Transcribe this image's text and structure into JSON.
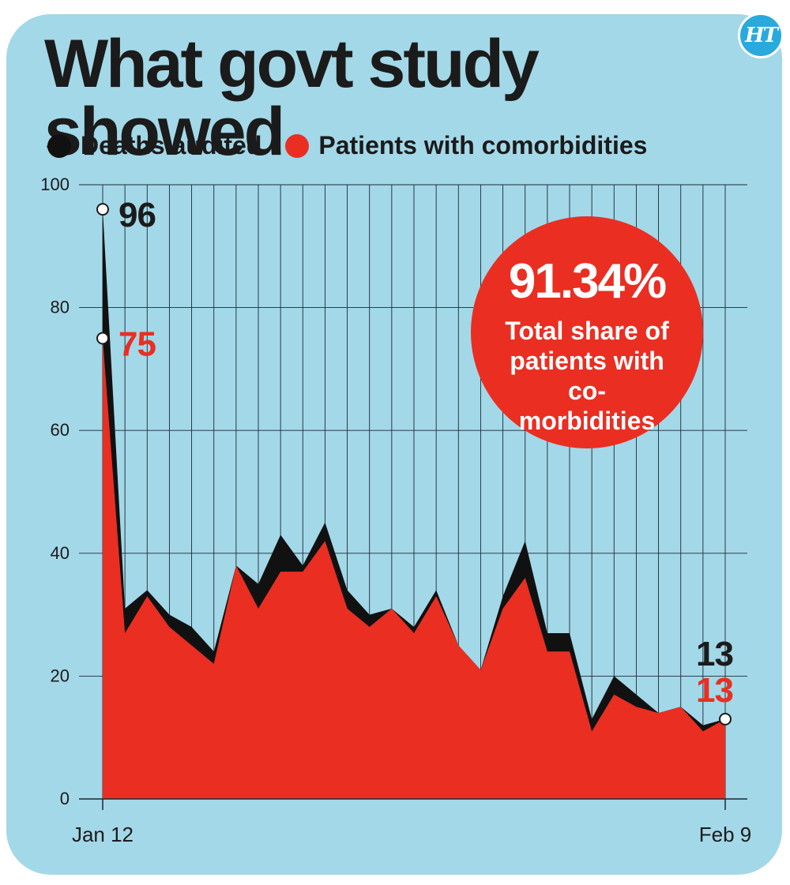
{
  "header": {
    "title": "What govt study showed",
    "logo_text": "HT"
  },
  "legend": [
    {
      "label": "Deaths audited",
      "color": "#111111"
    },
    {
      "label": "Patients with comorbidities",
      "color": "#ea2e22"
    }
  ],
  "callout": {
    "value": "91.34%",
    "label": "Total share of patients with co-morbidities",
    "color": "#ea2e22"
  },
  "chart_data": {
    "type": "area",
    "x": [
      "Jan 12",
      "Jan 13",
      "Jan 14",
      "Jan 15",
      "Jan 16",
      "Jan 17",
      "Jan 18",
      "Jan 19",
      "Jan 20",
      "Jan 21",
      "Jan 22",
      "Jan 23",
      "Jan 24",
      "Jan 25",
      "Jan 26",
      "Jan 27",
      "Jan 28",
      "Jan 29",
      "Jan 30",
      "Jan 31",
      "Feb 1",
      "Feb 2",
      "Feb 3",
      "Feb 4",
      "Feb 5",
      "Feb 6",
      "Feb 7",
      "Feb 8",
      "Feb 9"
    ],
    "x_tick_labels": [
      "Jan 12",
      "Feb 9"
    ],
    "series": [
      {
        "name": "Deaths audited",
        "color": "#111111",
        "values": [
          96,
          31,
          34,
          30,
          28,
          24,
          38,
          35,
          43,
          38,
          45,
          34,
          30,
          31,
          28,
          34,
          25,
          21,
          33,
          42,
          27,
          27,
          13,
          20,
          17,
          14,
          15,
          12,
          13
        ]
      },
      {
        "name": "Patients with comorbidities",
        "color": "#ea2e22",
        "values": [
          75,
          27,
          33,
          28,
          25,
          22,
          38,
          31,
          37,
          37,
          42,
          31,
          28,
          31,
          27,
          33,
          25,
          21,
          31,
          36,
          24,
          24,
          11,
          17,
          15,
          14,
          15,
          11,
          13
        ]
      }
    ],
    "annotations": [
      {
        "series": 0,
        "index": 0,
        "text": "96",
        "color": "#1b1b1b"
      },
      {
        "series": 1,
        "index": 0,
        "text": "75",
        "color": "#ea2e22"
      },
      {
        "series": 0,
        "index": 28,
        "text": "13",
        "color": "#1b1b1b"
      },
      {
        "series": 1,
        "index": 28,
        "text": "13",
        "color": "#ea2e22"
      }
    ],
    "yticks": [
      0,
      20,
      40,
      60,
      80,
      100
    ],
    "ylim": [
      0,
      100
    ],
    "grid": true,
    "legend_position": "top-left"
  }
}
